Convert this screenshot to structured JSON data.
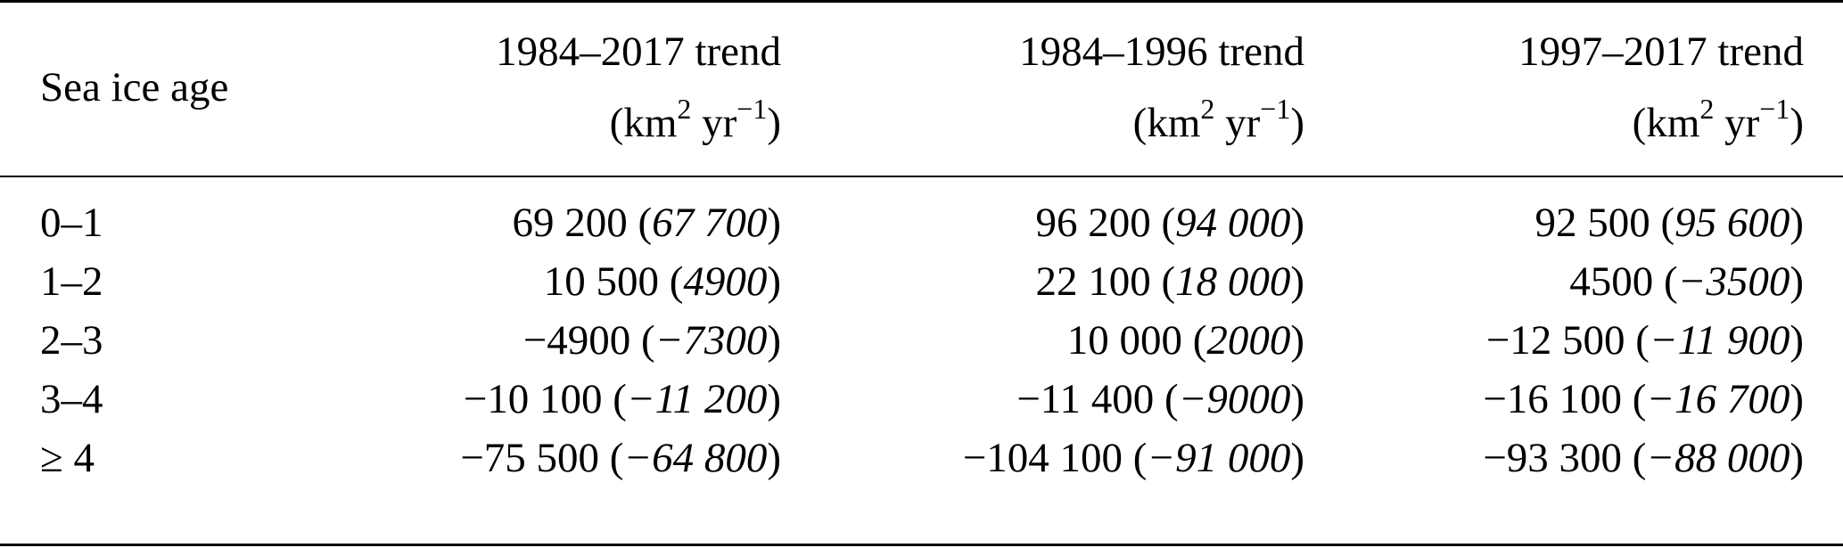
{
  "table": {
    "header": {
      "label": "Sea ice age",
      "columns": [
        {
          "title": "1984–2017 trend",
          "unit_base": "km",
          "unit_exp": "2",
          "unit_mid": " yr",
          "unit_exp2": "−1"
        },
        {
          "title": "1984–1996 trend",
          "unit_base": "km",
          "unit_exp": "2",
          "unit_mid": " yr",
          "unit_exp2": "−1"
        },
        {
          "title": "1997–2017 trend",
          "unit_base": "km",
          "unit_exp": "2",
          "unit_mid": " yr",
          "unit_exp2": "−1"
        }
      ]
    },
    "rows": [
      {
        "age": "0–1",
        "cells": [
          {
            "v": "69 200",
            "p": "67 700"
          },
          {
            "v": "96 200",
            "p": "94 000"
          },
          {
            "v": "92 500",
            "p": "95 600"
          }
        ]
      },
      {
        "age": "1–2",
        "cells": [
          {
            "v": "10 500",
            "p": "4900"
          },
          {
            "v": "22 100",
            "p": "18 000"
          },
          {
            "v": "4500",
            "p": "−3500"
          }
        ]
      },
      {
        "age": "2–3",
        "cells": [
          {
            "v": "−4900",
            "p": "−7300"
          },
          {
            "v": "10 000",
            "p": "2000"
          },
          {
            "v": "−12 500",
            "p": "−11 900"
          }
        ]
      },
      {
        "age": "3–4",
        "cells": [
          {
            "v": "−10 100",
            "p": "−11 200"
          },
          {
            "v": "−11 400",
            "p": "−9000"
          },
          {
            "v": "−16 100",
            "p": "−16 700"
          }
        ]
      },
      {
        "age": "≥ 4",
        "cells": [
          {
            "v": "−75 500",
            "p": "−64 800"
          },
          {
            "v": "−104 100",
            "p": "−91 000"
          },
          {
            "v": "−93 300",
            "p": "−88 000"
          }
        ]
      }
    ]
  }
}
